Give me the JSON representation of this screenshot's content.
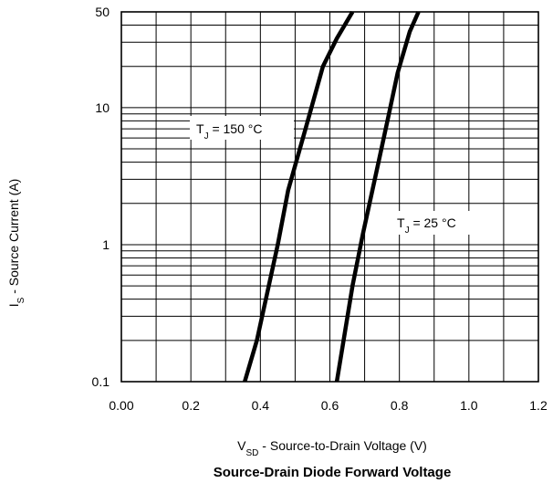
{
  "chart_data": {
    "type": "line",
    "title": "Source-Drain Diode Forward Voltage",
    "xlabel": {
      "main": "V",
      "sub": "SD",
      "rest": " - Source-to-Drain Voltage (V)"
    },
    "ylabel": {
      "main": "I",
      "sub": "S",
      "rest": " - Source Current (A)"
    },
    "xlim": [
      0.0,
      1.2
    ],
    "ylim": [
      0.1,
      50
    ],
    "yscale": "log",
    "grid": true,
    "x_ticks": [
      0.0,
      0.2,
      0.4,
      0.6,
      0.8,
      1.0,
      1.2
    ],
    "x_tick_labels": [
      "0.00",
      "0.2",
      "0.4",
      "0.6",
      "0.8",
      "1.0",
      "1.2"
    ],
    "y_ticks": [
      0.1,
      1,
      10,
      50
    ],
    "y_tick_labels": [
      "0.1",
      "1",
      "10",
      "50"
    ],
    "series": [
      {
        "id": "tj150",
        "label": {
          "main": "T",
          "sub": "J",
          "rest": " = 150 °C"
        },
        "points": [
          [
            0.355,
            0.1
          ],
          [
            0.39,
            0.2
          ],
          [
            0.45,
            1.0
          ],
          [
            0.48,
            2.5
          ],
          [
            0.53,
            7.0
          ],
          [
            0.58,
            20.0
          ],
          [
            0.62,
            32.0
          ],
          [
            0.665,
            50.0
          ]
        ]
      },
      {
        "id": "tj25",
        "label": {
          "main": "T",
          "sub": "J",
          "rest": " = 25 °C"
        },
        "points": [
          [
            0.62,
            0.1
          ],
          [
            0.665,
            0.5
          ],
          [
            0.695,
            1.2
          ],
          [
            0.74,
            4.0
          ],
          [
            0.77,
            9.0
          ],
          [
            0.795,
            18.0
          ],
          [
            0.83,
            36.0
          ],
          [
            0.855,
            50.0
          ]
        ]
      }
    ]
  }
}
